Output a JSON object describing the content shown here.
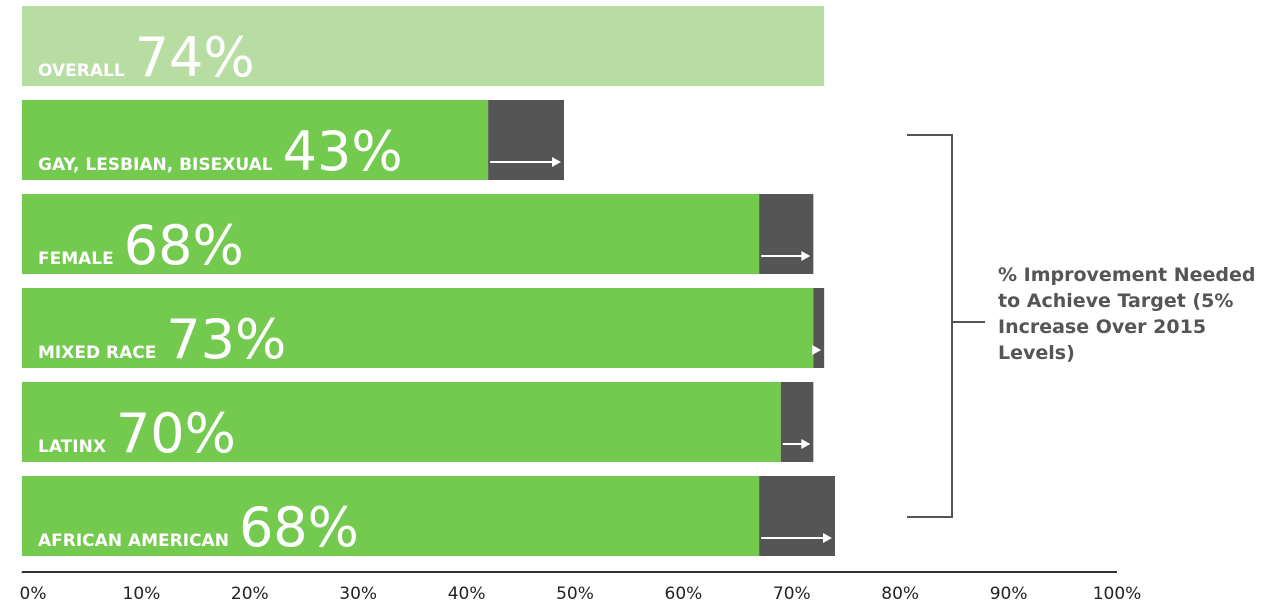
{
  "chart_data": {
    "type": "bar",
    "orientation": "horizontal",
    "categories": [
      "OVERALL",
      "GAY, LESBIAN, BISEXUAL",
      "FEMALE",
      "MIXED RACE",
      "LATINX",
      "AFRICAN AMERICAN"
    ],
    "series": [
      {
        "color": "#74c94f",
        "values": [
          74,
          43,
          68,
          73,
          70,
          68
        ],
        "value_labels": [
          "74%",
          "43%",
          "68%",
          "73%",
          "70%",
          "68%"
        ]
      },
      {
        "color": "#555555",
        "values": [
          null,
          7,
          5,
          1,
          3,
          7
        ]
      }
    ],
    "first_bar_color": "#b7dda3",
    "annotation": "% Improvement Needed to Achieve Target (5% Increase Over 2015 Levels)",
    "xlim": [
      0,
      100
    ],
    "xticks": [
      {
        "value": 0,
        "label": "0%"
      },
      {
        "value": 10,
        "label": "10%"
      },
      {
        "value": 20,
        "label": "20%"
      },
      {
        "value": 30,
        "label": "30%"
      },
      {
        "value": 40,
        "label": "40%"
      },
      {
        "value": 50,
        "label": "50%"
      },
      {
        "value": 60,
        "label": "60%"
      },
      {
        "value": 70,
        "label": "70%"
      },
      {
        "value": 80,
        "label": "80%"
      },
      {
        "value": 90,
        "label": "90%"
      },
      {
        "value": 100,
        "label": "100%"
      }
    ],
    "grid": false
  }
}
